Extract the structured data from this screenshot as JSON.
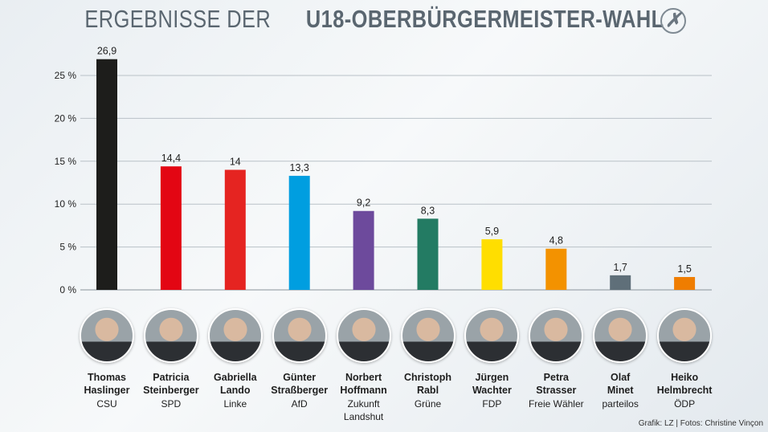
{
  "title_light": "ERGEBNISSE DER",
  "title_bold": "U18-OBERBÜRGERMEISTER-WAHL",
  "ballot_icon": "✗",
  "credit": "Grafik: LZ | Fotos: Christine Vinçon",
  "chart_data": {
    "type": "bar",
    "title": "ERGEBNISSE DER U18-OBERBÜRGERMEISTER-WAHL",
    "ylabel": "",
    "xlabel": "",
    "ylim": [
      0,
      25
    ],
    "yticks": [
      0,
      5,
      10,
      15,
      20,
      25
    ],
    "ytick_labels": [
      "0 %",
      "5 %",
      "10 %",
      "15 %",
      "20 %",
      "25 %"
    ],
    "grid": true,
    "categories": [
      "Thomas Haslinger",
      "Patricia Steinberger",
      "Gabriella Lando",
      "Günter Straßberger",
      "Norbert Hoffmann",
      "Christoph Rabl",
      "Jürgen Wachter",
      "Petra Strasser",
      "Olaf Minet",
      "Heiko Helmbrecht"
    ],
    "values": [
      26.9,
      14.4,
      14,
      13.3,
      9.2,
      8.3,
      5.9,
      4.8,
      1.7,
      1.5
    ],
    "value_labels": [
      "26,9",
      "14,4",
      "14",
      "13,3",
      "9,2",
      "8,3",
      "5,9",
      "4,8",
      "1,7",
      "1,5"
    ],
    "colors": [
      "#1d1d1b",
      "#e30613",
      "#e52421",
      "#009ee0",
      "#6d4a9c",
      "#237b63",
      "#ffde00",
      "#f39200",
      "#5f6f79",
      "#ef7d00"
    ]
  },
  "candidates": [
    {
      "first": "Thomas",
      "last": "Haslinger",
      "party": "CSU"
    },
    {
      "first": "Patricia",
      "last": "Steinberger",
      "party": "SPD"
    },
    {
      "first": "Gabriella",
      "last": "Lando",
      "party": "Linke"
    },
    {
      "first": "Günter",
      "last": "Straßberger",
      "party": "AfD"
    },
    {
      "first": "Norbert",
      "last": "Hoffmann",
      "party": "Zukunft Landshut"
    },
    {
      "first": "Christoph",
      "last": "Rabl",
      "party": "Grüne"
    },
    {
      "first": "Jürgen",
      "last": "Wachter",
      "party": "FDP"
    },
    {
      "first": "Petra",
      "last": "Strasser",
      "party": "Freie Wähler"
    },
    {
      "first": "Olaf",
      "last": "Minet",
      "party": "parteilos"
    },
    {
      "first": "Heiko",
      "last": "Helmbrecht",
      "party": "ÖDP"
    }
  ]
}
